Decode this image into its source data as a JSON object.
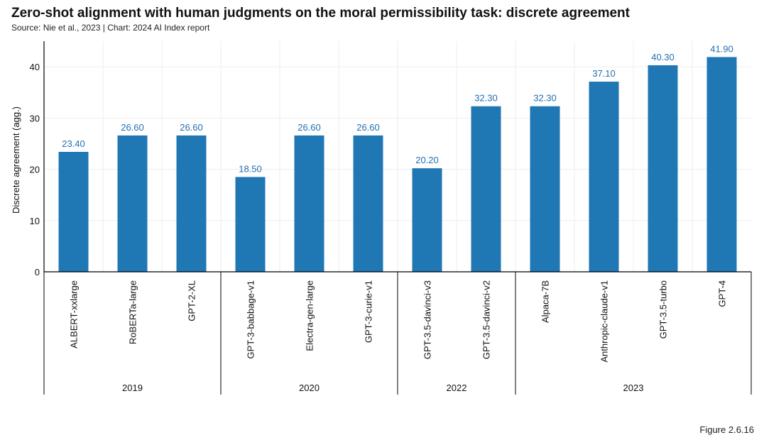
{
  "header": {
    "title": "Zero-shot alignment with human judgments on the moral permissibility task: discrete agreement",
    "source": "Source: Nie et al., 2023 | Chart: 2024 AI Index report",
    "figure": "Figure 2.6.16"
  },
  "colors": {
    "bar": "#1f77b4",
    "value_label": "#1f6fb2",
    "grid": "#eeeeee",
    "axis": "#000000"
  },
  "chart_data": {
    "type": "bar",
    "title": "Zero-shot alignment with human judgments on the moral permissibility task: discrete agreement",
    "ylabel": "Discrete agreement (agg.)",
    "xlabel": "",
    "ylim": [
      0,
      45
    ],
    "yticks": [
      0,
      10,
      20,
      30,
      40
    ],
    "grid": true,
    "categories": [
      "ALBERT-xxlarge",
      "RoBERTa-large",
      "GPT-2-XL",
      "GPT-3-babbage-v1",
      "Electra-gen-large",
      "GPT-3-curie-v1",
      "GPT-3.5-davinci-v3",
      "GPT-3.5-davinci-v2",
      "Alpaca-7B",
      "Anthropic-claude-v1",
      "GPT-3.5-turbo",
      "GPT-4"
    ],
    "values": [
      23.4,
      26.6,
      26.6,
      18.5,
      26.6,
      26.6,
      20.2,
      32.3,
      32.3,
      37.1,
      40.3,
      41.9
    ],
    "value_labels": [
      "23.40",
      "26.60",
      "26.60",
      "18.50",
      "26.60",
      "26.60",
      "20.20",
      "32.30",
      "32.30",
      "37.10",
      "40.30",
      "41.90"
    ],
    "groups": [
      {
        "label": "2019",
        "count": 3
      },
      {
        "label": "2020",
        "count": 3
      },
      {
        "label": "2022",
        "count": 2
      },
      {
        "label": "2023",
        "count": 4
      }
    ]
  }
}
